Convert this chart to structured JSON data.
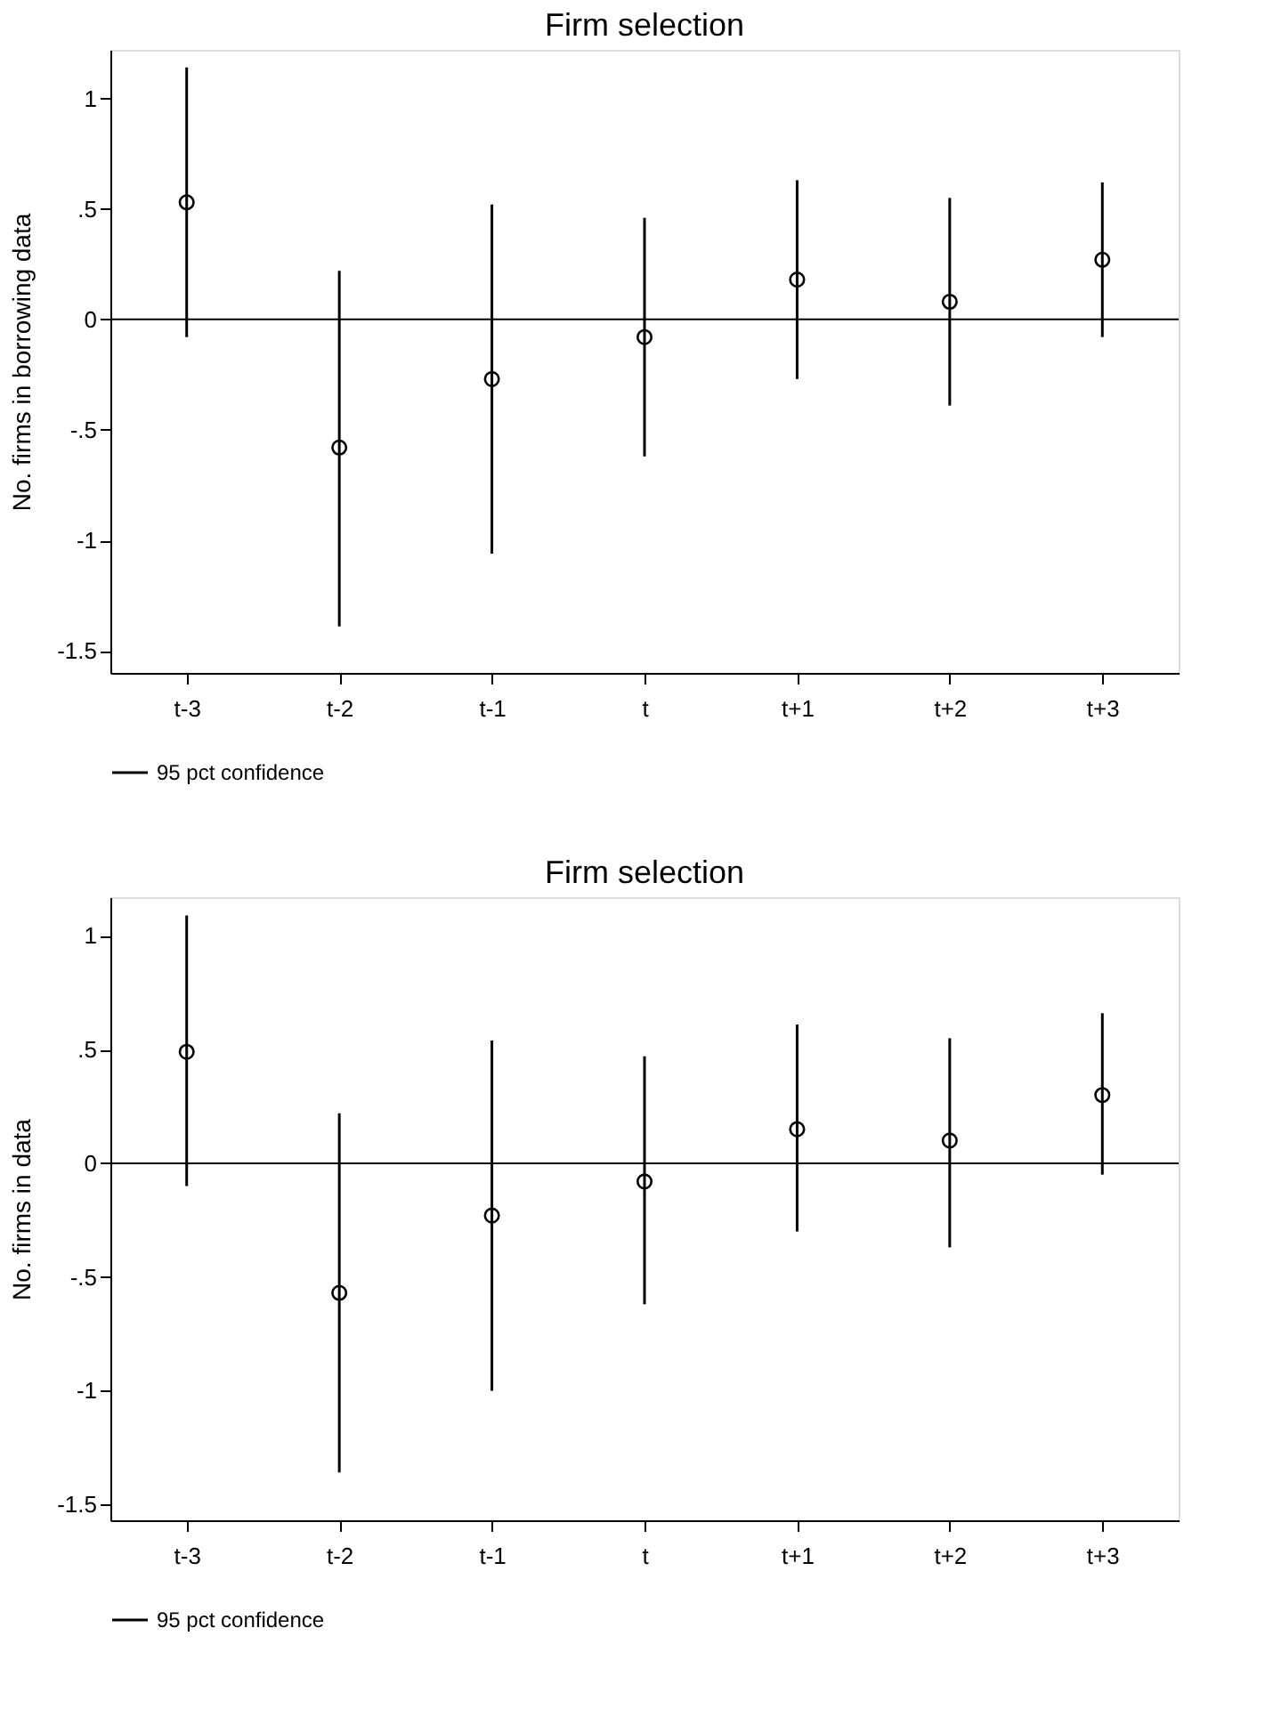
{
  "chart_data": [
    {
      "type": "scatter",
      "title": "Firm selection",
      "ylabel": "No. firms in borrowing data",
      "categories": [
        "t-3",
        "t-2",
        "t-1",
        "t",
        "t+1",
        "t+2",
        "t+3"
      ],
      "series": [
        {
          "name": "95 pct confidence",
          "color": "#000000",
          "values": [
            0.53,
            -0.58,
            -0.27,
            -0.08,
            0.18,
            0.08,
            0.27
          ],
          "errors": [
            [
              -0.08,
              1.14
            ],
            [
              -1.39,
              0.22
            ],
            [
              -1.06,
              0.52
            ],
            [
              -0.62,
              0.46
            ],
            [
              -0.27,
              0.63
            ],
            [
              -0.39,
              0.55
            ],
            [
              -0.08,
              0.62
            ]
          ]
        }
      ],
      "ylim": [
        -1.6,
        1.22
      ],
      "yticks": [
        {
          "value": 1,
          "label": "1"
        },
        {
          "value": 0.5,
          "label": ".5"
        },
        {
          "value": 0,
          "label": "0"
        },
        {
          "value": -0.5,
          "label": "-.5"
        },
        {
          "value": -1,
          "label": "-1"
        },
        {
          "value": -1.5,
          "label": "-1.5"
        }
      ],
      "ref_lines": [
        {
          "axis": "y",
          "value": 0,
          "color": "#000000"
        }
      ],
      "marker": "circle",
      "grid": false,
      "legend": "bottom"
    },
    {
      "type": "scatter",
      "title": "Firm selection",
      "ylabel": "No. firms in data",
      "categories": [
        "t-3",
        "t-2",
        "t-1",
        "t",
        "t+1",
        "t+2",
        "t+3"
      ],
      "series": [
        {
          "name": "95 pct confidence",
          "color": "#000000",
          "values": [
            0.49,
            -0.57,
            -0.23,
            -0.08,
            0.15,
            0.1,
            0.3
          ],
          "errors": [
            [
              -0.1,
              1.09
            ],
            [
              -1.36,
              0.22
            ],
            [
              -1.0,
              0.54
            ],
            [
              -0.62,
              0.47
            ],
            [
              -0.3,
              0.61
            ],
            [
              -0.37,
              0.55
            ],
            [
              -0.05,
              0.66
            ]
          ]
        }
      ],
      "ylim": [
        -1.57,
        1.17
      ],
      "yticks": [
        {
          "value": 1,
          "label": "1"
        },
        {
          "value": 0.5,
          "label": ".5"
        },
        {
          "value": 0,
          "label": "0"
        },
        {
          "value": -0.5,
          "label": "-.5"
        },
        {
          "value": -1,
          "label": "-1"
        },
        {
          "value": -1.5,
          "label": "-1.5"
        }
      ],
      "ref_lines": [
        {
          "axis": "y",
          "value": 0,
          "color": "#000000"
        }
      ],
      "marker": "circle",
      "grid": false,
      "legend": "bottom"
    }
  ]
}
